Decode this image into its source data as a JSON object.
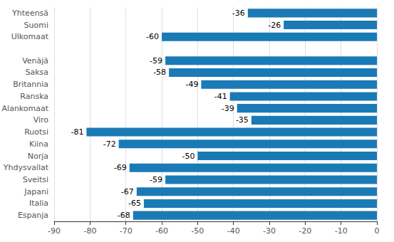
{
  "chart_data": {
    "type": "bar",
    "orientation": "horizontal",
    "categories": [
      "Espanja",
      "Italia",
      "Japani",
      "Sveitsi",
      "Yhdysvallat",
      "Norja",
      "Kiina",
      "Ruotsi",
      "Viro",
      "Alankomaat",
      "Ranska",
      "Britannia",
      "Saksa",
      "Venäjä",
      null,
      "Ulkomaat",
      "Suomi",
      "Yhteensä"
    ],
    "values": [
      -68,
      -65,
      -67,
      -59,
      -69,
      -50,
      -72,
      -81,
      -35,
      -39,
      -41,
      -49,
      -58,
      -59,
      null,
      -60,
      -26,
      -36
    ],
    "color": "#1a7ab5",
    "xlim": [
      -90,
      0
    ],
    "xticks": [
      -90,
      -80,
      -70,
      -60,
      -50,
      -40,
      -30,
      -20,
      -10,
      0
    ],
    "grid": true,
    "data_labels": true
  }
}
